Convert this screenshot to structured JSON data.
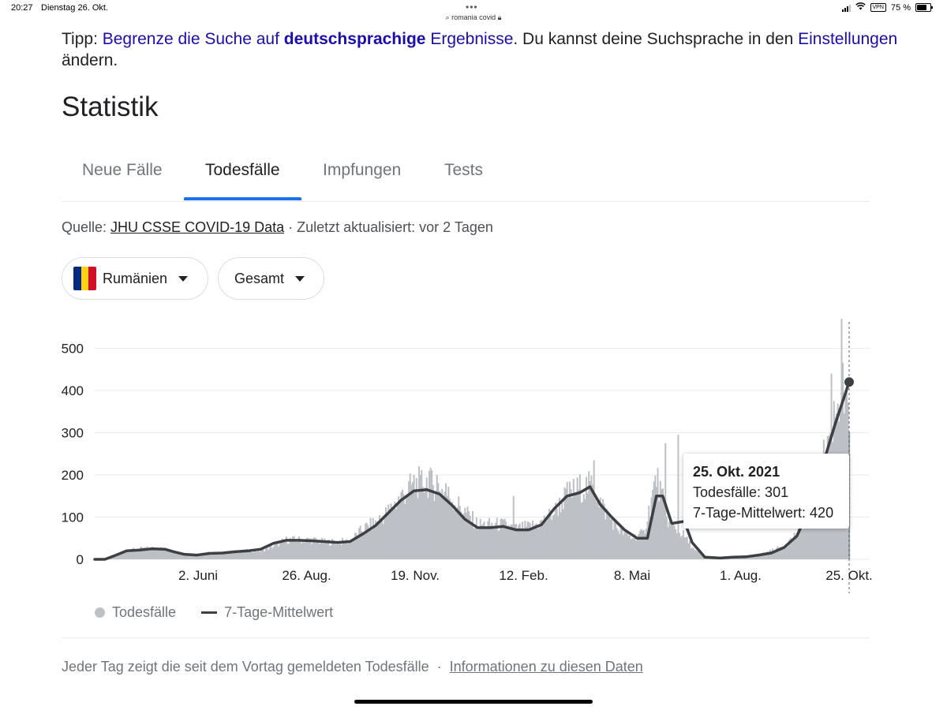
{
  "statusbar": {
    "time": "20:27",
    "date": "Dienstag 26. Okt.",
    "url": "romania covid",
    "vpn": "VPN",
    "battery": "75 %",
    "battery_level": 0.75
  },
  "tip": {
    "prefix": "Tipp: ",
    "link1": "Begrenze die Suche auf ",
    "bold": "deutschsprachige",
    "link2": " Ergebnisse",
    "middle": ". Du kannst deine Suchsprache in den ",
    "link3": "Einstellungen",
    "suffix": " ändern."
  },
  "page_title": "Statistik",
  "tabs": [
    {
      "label": "Neue Fälle",
      "active": false
    },
    {
      "label": "Todesfälle",
      "active": true
    },
    {
      "label": "Impfungen",
      "active": false
    },
    {
      "label": "Tests",
      "active": false
    }
  ],
  "source": {
    "prefix": "Quelle: ",
    "link": "JHU CSSE COVID-19 Data",
    "suffix": " · Zuletzt aktualisiert: vor 2 Tagen"
  },
  "dropdowns": {
    "country": "Rumänien",
    "scope": "Gesamt"
  },
  "colors": {
    "accent": "#1a73e8",
    "link": "#1a0dab",
    "bars": "#bdc1c6",
    "line": "#3c4043",
    "flag": [
      "#002b7f",
      "#fcd116",
      "#ce1126"
    ]
  },
  "chart_data": {
    "type": "bar",
    "ylim": [
      0,
      570
    ],
    "yticks": [
      0,
      100,
      200,
      300,
      400,
      500
    ],
    "xtick_labels": [
      "2. Juni",
      "26. Aug.",
      "19. Nov.",
      "12. Feb.",
      "8. Mai",
      "1. Aug.",
      "25. Okt."
    ],
    "xtick_days": [
      81,
      166,
      251,
      336,
      421,
      506,
      591
    ],
    "series": [
      {
        "name": "Todesfälle",
        "daily_anchors": [
          [
            0,
            0
          ],
          [
            10,
            0
          ],
          [
            20,
            15
          ],
          [
            30,
            22
          ],
          [
            40,
            25
          ],
          [
            50,
            26
          ],
          [
            60,
            20
          ],
          [
            70,
            12
          ],
          [
            80,
            10
          ],
          [
            90,
            15
          ],
          [
            100,
            14
          ],
          [
            110,
            18
          ],
          [
            120,
            20
          ],
          [
            130,
            20
          ],
          [
            140,
            30
          ],
          [
            150,
            45
          ],
          [
            160,
            45
          ],
          [
            170,
            45
          ],
          [
            180,
            40
          ],
          [
            190,
            40
          ],
          [
            200,
            42
          ],
          [
            210,
            70
          ],
          [
            220,
            85
          ],
          [
            230,
            110
          ],
          [
            240,
            145
          ],
          [
            250,
            175
          ],
          [
            260,
            180
          ],
          [
            270,
            165
          ],
          [
            280,
            140
          ],
          [
            290,
            110
          ],
          [
            300,
            80
          ],
          [
            310,
            80
          ],
          [
            320,
            80
          ],
          [
            330,
            70
          ],
          [
            340,
            75
          ],
          [
            350,
            85
          ],
          [
            360,
            110
          ],
          [
            370,
            150
          ],
          [
            380,
            165
          ],
          [
            390,
            170
          ],
          [
            400,
            110
          ],
          [
            410,
            70
          ],
          [
            420,
            50
          ],
          [
            430,
            60
          ],
          [
            440,
            190
          ],
          [
            450,
            80
          ],
          [
            460,
            60
          ],
          [
            470,
            20
          ],
          [
            480,
            5
          ],
          [
            490,
            3
          ],
          [
            500,
            5
          ],
          [
            510,
            6
          ],
          [
            520,
            10
          ],
          [
            530,
            20
          ],
          [
            540,
            30
          ],
          [
            550,
            60
          ],
          [
            560,
            130
          ],
          [
            570,
            220
          ],
          [
            580,
            350
          ],
          [
            585,
            400
          ],
          [
            591,
            301
          ]
        ],
        "daily_peaks": [
          [
            255,
            200
          ],
          [
            262,
            210
          ],
          [
            268,
            200
          ],
          [
            275,
            180
          ],
          [
            328,
            150
          ],
          [
            391,
            235
          ],
          [
            447,
            275
          ],
          [
            457,
            295
          ],
          [
            585,
            570
          ],
          [
            577,
            440
          ]
        ]
      },
      {
        "name": "7-Tage-Mittelwert",
        "points": [
          [
            0,
            0
          ],
          [
            8,
            0
          ],
          [
            15,
            8
          ],
          [
            25,
            20
          ],
          [
            35,
            22
          ],
          [
            45,
            25
          ],
          [
            55,
            24
          ],
          [
            62,
            18
          ],
          [
            70,
            12
          ],
          [
            80,
            10
          ],
          [
            90,
            14
          ],
          [
            100,
            15
          ],
          [
            110,
            18
          ],
          [
            120,
            20
          ],
          [
            130,
            24
          ],
          [
            140,
            38
          ],
          [
            150,
            45
          ],
          [
            160,
            45
          ],
          [
            170,
            44
          ],
          [
            180,
            42
          ],
          [
            190,
            40
          ],
          [
            200,
            42
          ],
          [
            210,
            60
          ],
          [
            220,
            80
          ],
          [
            230,
            110
          ],
          [
            240,
            140
          ],
          [
            250,
            162
          ],
          [
            260,
            165
          ],
          [
            270,
            155
          ],
          [
            280,
            128
          ],
          [
            290,
            95
          ],
          [
            300,
            75
          ],
          [
            310,
            75
          ],
          [
            320,
            78
          ],
          [
            330,
            70
          ],
          [
            340,
            70
          ],
          [
            350,
            82
          ],
          [
            360,
            120
          ],
          [
            370,
            150
          ],
          [
            380,
            158
          ],
          [
            388,
            172
          ],
          [
            396,
            130
          ],
          [
            405,
            100
          ],
          [
            415,
            70
          ],
          [
            425,
            50
          ],
          [
            433,
            50
          ],
          [
            440,
            150
          ],
          [
            445,
            150
          ],
          [
            452,
            85
          ],
          [
            462,
            90
          ],
          [
            468,
            40
          ],
          [
            478,
            5
          ],
          [
            490,
            3
          ],
          [
            500,
            5
          ],
          [
            510,
            6
          ],
          [
            520,
            10
          ],
          [
            530,
            15
          ],
          [
            540,
            28
          ],
          [
            550,
            55
          ],
          [
            560,
            120
          ],
          [
            570,
            220
          ],
          [
            580,
            320
          ],
          [
            591,
            420
          ]
        ]
      }
    ],
    "tooltip": {
      "date": "25. Okt. 2021",
      "line1": "Todesfälle: 301",
      "line2": "7-Tage-Mittelwert: 420",
      "value_daily": 301,
      "value_avg": 420
    }
  },
  "legend": {
    "daily": "Todesfälle",
    "avg": "7-Tage-Mittelwert"
  },
  "footer": {
    "text": "Jeder Tag zeigt die seit dem Vortag gemeldeten Todesfälle",
    "sep": "·",
    "link": "Informationen zu diesen Daten"
  }
}
